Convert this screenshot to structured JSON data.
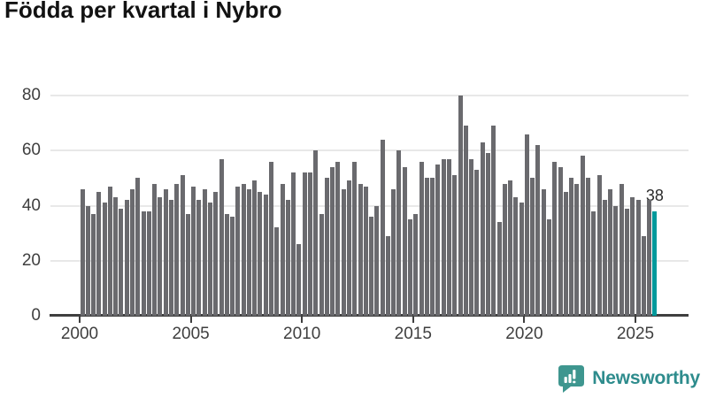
{
  "title": "Födda per kvartal i Nybro",
  "branding": {
    "name": "Newsworthy"
  },
  "colors": {
    "bar": "#6A6A6E",
    "highlight": "#00999B",
    "grid": "#E8E8E8",
    "axis": "#3F3F3F",
    "tick_text": "#3F3F3F",
    "title_text": "#121212",
    "annotation_text": "#2B2B2B",
    "brand_text": "#2E8C8D",
    "brand_icon": "#3E968F"
  },
  "chart_data": {
    "type": "bar",
    "title": "Födda per kvartal i Nybro",
    "x_start": "2000-Q1",
    "x_freq": "quarterly",
    "values": [
      46,
      40,
      37,
      45,
      41,
      47,
      43,
      39,
      42,
      46,
      50,
      38,
      38,
      48,
      43,
      46,
      42,
      48,
      51,
      37,
      47,
      42,
      46,
      41,
      45,
      57,
      37,
      36,
      47,
      48,
      46,
      49,
      45,
      44,
      56,
      32,
      48,
      42,
      52,
      26,
      52,
      52,
      60,
      37,
      50,
      54,
      56,
      46,
      49,
      56,
      48,
      47,
      36,
      40,
      64,
      29,
      46,
      60,
      54,
      35,
      37,
      56,
      50,
      50,
      55,
      57,
      57,
      51,
      80,
      69,
      57,
      53,
      63,
      59,
      69,
      34,
      48,
      49,
      43,
      41,
      66,
      50,
      62,
      46,
      35,
      56,
      54,
      45,
      50,
      48,
      58,
      50,
      38,
      51,
      42,
      46,
      40,
      48,
      39,
      43,
      42,
      29,
      42,
      38
    ],
    "highlight": {
      "index": 103,
      "label": "38"
    },
    "xtick_labels": [
      "2000",
      "2005",
      "2010",
      "2015",
      "2020",
      "2025"
    ],
    "ytick_labels": [
      "0",
      "20",
      "40",
      "60",
      "80"
    ],
    "yticks": [
      0,
      20,
      40,
      60,
      80
    ],
    "ylim": [
      0,
      80
    ],
    "grid": "horizontal-only",
    "legend": "none"
  }
}
